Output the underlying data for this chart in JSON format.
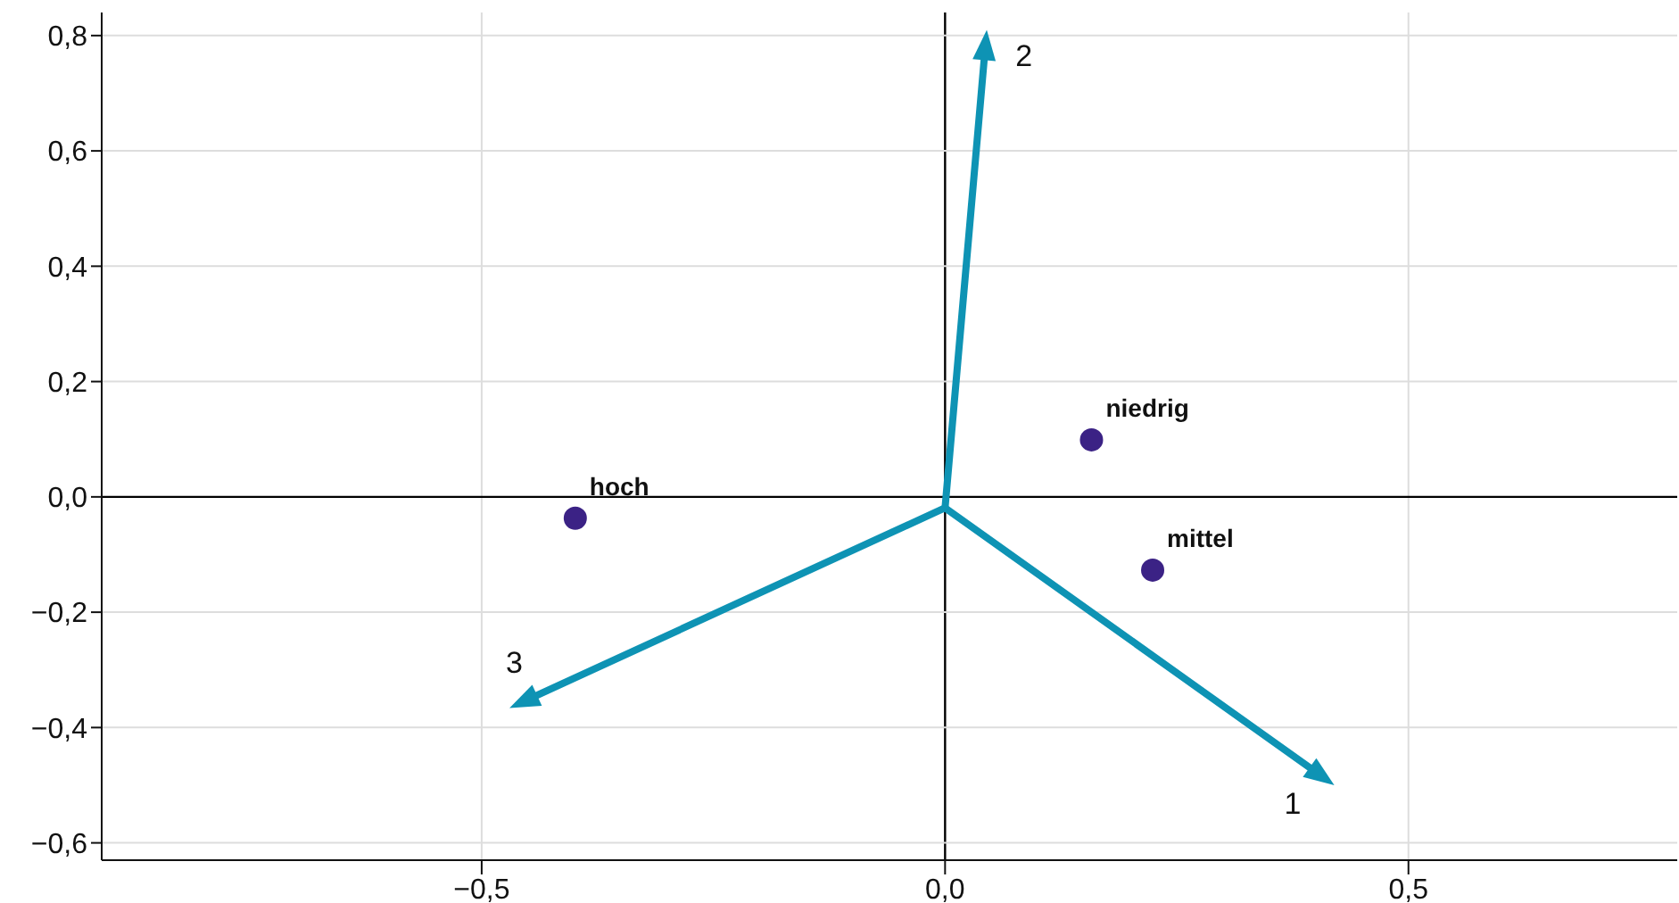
{
  "chart_data": {
    "type": "scatter",
    "xlim": [
      -0.91,
      0.79
    ],
    "ylim": [
      -0.63,
      0.84
    ],
    "xticks": [
      {
        "value": -0.5,
        "label": "−0,5"
      },
      {
        "value": 0,
        "label": "0,0"
      },
      {
        "value": 0.5,
        "label": "0,5"
      }
    ],
    "yticks": [
      {
        "value": -0.6,
        "label": "−0,6"
      },
      {
        "value": -0.4,
        "label": "−0,4"
      },
      {
        "value": -0.2,
        "label": "−0,2"
      },
      {
        "value": 0,
        "label": "0,0"
      },
      {
        "value": 0.2,
        "label": "0,2"
      },
      {
        "value": 0.4,
        "label": "0,4"
      },
      {
        "value": 0.6,
        "label": "0,6"
      },
      {
        "value": 0.8,
        "label": "0,8"
      }
    ],
    "grid": true,
    "marker": "circle",
    "series": [
      {
        "color": "#3b2285",
        "x": [
          -0.399,
          0.158,
          0.224
        ],
        "values": [
          -0.037,
          0.099,
          -0.127
        ]
      }
    ],
    "annotations": [
      {
        "text": "hoch",
        "x": -0.399,
        "y": -0.037
      },
      {
        "text": "niedrig",
        "x": 0.158,
        "y": 0.099
      },
      {
        "text": "mittel",
        "x": 0.224,
        "y": -0.127
      },
      "1",
      "2",
      "3"
    ]
  }
}
